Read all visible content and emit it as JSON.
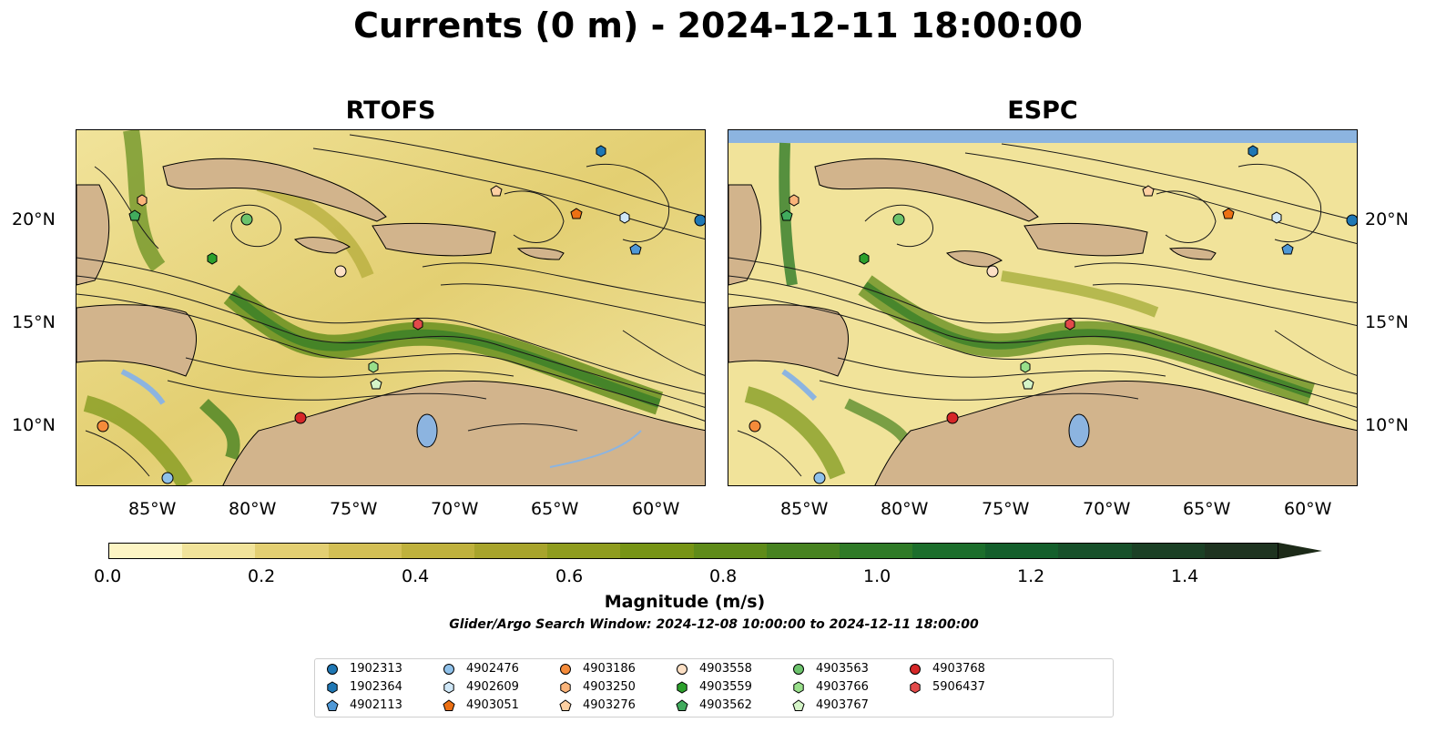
{
  "title": "Currents (0 m) - 2024-12-11 18:00:00",
  "panels": [
    {
      "title": "RTOFS"
    },
    {
      "title": "ESPC"
    }
  ],
  "x_ticks": [
    "85°W",
    "80°W",
    "75°W",
    "70°W",
    "65°W",
    "60°W"
  ],
  "y_ticks": [
    "20°N",
    "15°N",
    "10°N"
  ],
  "colorbar": {
    "label": "Magnitude (m/s)",
    "ticks": [
      "0.0",
      "0.2",
      "0.4",
      "0.6",
      "0.8",
      "1.0",
      "1.2",
      "1.4"
    ],
    "colors": [
      "#fdf5c4",
      "#f1e39a",
      "#e3cf72",
      "#d3bf55",
      "#bfb13d",
      "#a8a42c",
      "#8f9c1e",
      "#779415",
      "#5f8b19",
      "#478220",
      "#2f7a27",
      "#1c6e2c",
      "#145f2c",
      "#17502a",
      "#1b4025",
      "#1e3320"
    ]
  },
  "search_window": "Glider/Argo Search Window: 2024-12-08 10:00:00 to 2024-12-11 18:00:00",
  "legend": [
    {
      "label": "1902313",
      "marker": "circle",
      "color": "#1f77b4"
    },
    {
      "label": "1902364",
      "marker": "hexagon",
      "color": "#1f77b4"
    },
    {
      "label": "4902113",
      "marker": "pentagon",
      "color": "#4f98d6"
    },
    {
      "label": "4902476",
      "marker": "circle",
      "color": "#8fc1ea"
    },
    {
      "label": "4902609",
      "marker": "hexagon",
      "color": "#cfe7f7"
    },
    {
      "label": "4903051",
      "marker": "pentagon",
      "color": "#ec7014"
    },
    {
      "label": "4903186",
      "marker": "circle",
      "color": "#f58b3a"
    },
    {
      "label": "4903250",
      "marker": "hexagon",
      "color": "#fbb47a"
    },
    {
      "label": "4903276",
      "marker": "pentagon",
      "color": "#fdd0a2"
    },
    {
      "label": "4903558",
      "marker": "circle",
      "color": "#fde0c5"
    },
    {
      "label": "4903559",
      "marker": "hexagon",
      "color": "#2ca02c"
    },
    {
      "label": "4903562",
      "marker": "pentagon",
      "color": "#41ab5d"
    },
    {
      "label": "4903563",
      "marker": "circle",
      "color": "#6cc36c"
    },
    {
      "label": "4903766",
      "marker": "hexagon",
      "color": "#98df8a"
    },
    {
      "label": "4903767",
      "marker": "pentagon",
      "color": "#d5f5c8"
    },
    {
      "label": "4903768",
      "marker": "circle",
      "color": "#d62728"
    },
    {
      "label": "5906437",
      "marker": "hexagon",
      "color": "#e34a4a"
    }
  ],
  "map_colors": {
    "land": "#d2b48c",
    "water": "#8cb4e0",
    "stream": "#1a1a1a"
  }
}
